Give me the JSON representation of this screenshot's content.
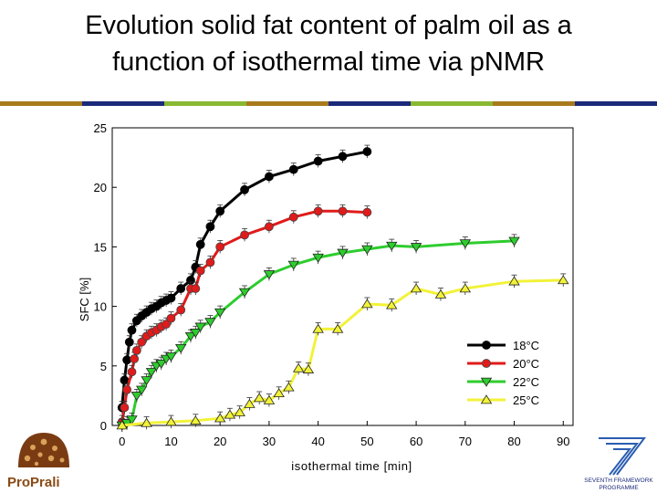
{
  "slide": {
    "title_line1": "Evolution solid fat content of palm oil as a",
    "title_line2": "function of isothermal time via pΝMR",
    "rule_colors": [
      "#a87a1e",
      "#1b2a7a",
      "#8ab832",
      "#a87a1e",
      "#1b2a7a",
      "#8ab832",
      "#a87a1e",
      "#1b2a7a"
    ]
  },
  "logos": {
    "left_text": "ProPrali",
    "right_text_line1": "SEVENTH FRAMEWORK",
    "right_text_line2": "PROGRAMME"
  },
  "chart_data": {
    "type": "line",
    "xlabel": "isothermal time [min]",
    "ylabel": "SFC [%]",
    "xlim": [
      -2,
      92
    ],
    "ylim": [
      0,
      25
    ],
    "xticks": [
      0,
      10,
      20,
      30,
      40,
      50,
      60,
      70,
      80,
      90
    ],
    "yticks": [
      0,
      5,
      10,
      15,
      20,
      25
    ],
    "legend_position": "bottom-right",
    "series": [
      {
        "name": "18°C",
        "color": "#000000",
        "marker": "circle",
        "points": [
          [
            0,
            1.5
          ],
          [
            0.5,
            3.8
          ],
          [
            1,
            5.5
          ],
          [
            1.5,
            7
          ],
          [
            2,
            8
          ],
          [
            3,
            8.8
          ],
          [
            4,
            9.2
          ],
          [
            5,
            9.5
          ],
          [
            6,
            9.8
          ],
          [
            7,
            10
          ],
          [
            8,
            10.3
          ],
          [
            9,
            10.5
          ],
          [
            10,
            10.7
          ],
          [
            12,
            11.5
          ],
          [
            14,
            12.2
          ],
          [
            15,
            13.3
          ],
          [
            16,
            15.2
          ],
          [
            18,
            16.7
          ],
          [
            20,
            18
          ],
          [
            25,
            19.8
          ],
          [
            30,
            20.9
          ],
          [
            35,
            21.5
          ],
          [
            40,
            22.2
          ],
          [
            45,
            22.6
          ],
          [
            50,
            23
          ]
        ]
      },
      {
        "name": "20°C",
        "color": "#e01b1b",
        "marker": "circle",
        "points": [
          [
            0,
            0.3
          ],
          [
            0.5,
            1.5
          ],
          [
            1,
            3
          ],
          [
            2,
            4.5
          ],
          [
            2.5,
            5.6
          ],
          [
            3,
            6.3
          ],
          [
            4,
            7
          ],
          [
            5,
            7.5
          ],
          [
            6,
            7.8
          ],
          [
            7,
            8
          ],
          [
            8,
            8.3
          ],
          [
            9,
            8.5
          ],
          [
            10,
            9
          ],
          [
            12,
            9.7
          ],
          [
            14,
            11.5
          ],
          [
            15,
            11.5
          ],
          [
            16,
            13
          ],
          [
            18,
            13.7
          ],
          [
            20,
            15
          ],
          [
            25,
            16
          ],
          [
            30,
            16.7
          ],
          [
            35,
            17.5
          ],
          [
            40,
            18
          ],
          [
            45,
            18
          ],
          [
            50,
            17.9
          ]
        ]
      },
      {
        "name": "22°C",
        "color": "#2ecc2e",
        "marker": "triangle-down",
        "points": [
          [
            0,
            0
          ],
          [
            1,
            0.2
          ],
          [
            2,
            0.5
          ],
          [
            3,
            2.5
          ],
          [
            4,
            3
          ],
          [
            5,
            3.8
          ],
          [
            6,
            4.5
          ],
          [
            7,
            5
          ],
          [
            8,
            5.2
          ],
          [
            9,
            5.6
          ],
          [
            10,
            5.8
          ],
          [
            12,
            6.5
          ],
          [
            14,
            7.5
          ],
          [
            15,
            7.8
          ],
          [
            16,
            8.3
          ],
          [
            18,
            8.7
          ],
          [
            20,
            9.5
          ],
          [
            25,
            11.2
          ],
          [
            30,
            12.7
          ],
          [
            35,
            13.5
          ],
          [
            40,
            14.1
          ],
          [
            45,
            14.5
          ],
          [
            50,
            14.8
          ],
          [
            55,
            15.1
          ],
          [
            60,
            15
          ],
          [
            70,
            15.3
          ],
          [
            80,
            15.5
          ]
        ]
      },
      {
        "name": "25°C",
        "color": "#f2f23a",
        "marker": "triangle-up",
        "points": [
          [
            0,
            0
          ],
          [
            5,
            0.2
          ],
          [
            10,
            0.3
          ],
          [
            15,
            0.4
          ],
          [
            20,
            0.6
          ],
          [
            22,
            0.9
          ],
          [
            24,
            1.1
          ],
          [
            26,
            1.8
          ],
          [
            28,
            2.3
          ],
          [
            30,
            2.1
          ],
          [
            32,
            2.7
          ],
          [
            34,
            3.2
          ],
          [
            36,
            4.8
          ],
          [
            38,
            4.7
          ],
          [
            40,
            8.1
          ],
          [
            44,
            8.1
          ],
          [
            50,
            10.2
          ],
          [
            55,
            10.1
          ],
          [
            60,
            11.5
          ],
          [
            65,
            11
          ],
          [
            70,
            11.5
          ],
          [
            80,
            12.1
          ],
          [
            90,
            12.2
          ]
        ]
      }
    ]
  }
}
